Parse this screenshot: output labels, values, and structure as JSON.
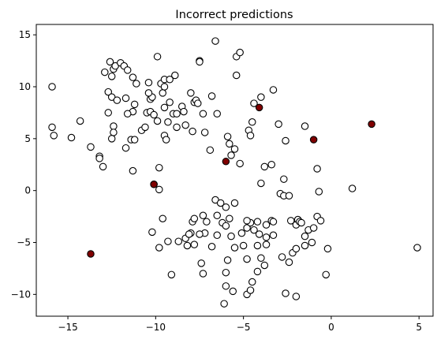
{
  "chart_data": {
    "type": "scatter",
    "title": "Incorrect predictions",
    "xlabel": "",
    "ylabel": "",
    "xlim": [
      -16.8,
      5.8
    ],
    "ylim": [
      -12.1,
      16.0
    ],
    "xticks": [
      -15,
      -10,
      -5,
      0,
      5
    ],
    "yticks": [
      -10,
      -5,
      0,
      5,
      10,
      15
    ],
    "xtick_labels": [
      "−15",
      "−10",
      "−5",
      "0",
      "5"
    ],
    "ytick_labels": [
      "−10",
      "−5",
      "0",
      "5",
      "10",
      "15"
    ],
    "grid": false,
    "series": [
      {
        "marker_fill": "#ffffff",
        "edge_color": "#000000",
        "points": [
          [
            -15.9,
            10.0
          ],
          [
            -15.9,
            6.1
          ],
          [
            -15.8,
            5.3
          ],
          [
            -14.3,
            6.7
          ],
          [
            -14.8,
            5.1
          ],
          [
            -13.7,
            4.2
          ],
          [
            -13.2,
            3.3
          ],
          [
            -13.2,
            3.1
          ],
          [
            -13.0,
            2.3
          ],
          [
            -12.6,
            12.4
          ],
          [
            -12.5,
            11.0
          ],
          [
            -12.4,
            11.7
          ],
          [
            -12.3,
            12.0
          ],
          [
            -12.0,
            12.3
          ],
          [
            -11.8,
            12.0
          ],
          [
            -11.6,
            11.6
          ],
          [
            -11.3,
            10.9
          ],
          [
            -11.1,
            10.3
          ],
          [
            -12.9,
            11.4
          ],
          [
            -12.7,
            9.5
          ],
          [
            -12.5,
            9.0
          ],
          [
            -12.2,
            8.7
          ],
          [
            -11.7,
            8.9
          ],
          [
            -11.2,
            8.3
          ],
          [
            -12.7,
            7.5
          ],
          [
            -12.4,
            6.2
          ],
          [
            -12.4,
            5.6
          ],
          [
            -12.5,
            5.0
          ],
          [
            -11.7,
            4.1
          ],
          [
            -11.4,
            4.9
          ],
          [
            -11.2,
            4.9
          ],
          [
            -11.3,
            7.6
          ],
          [
            -11.6,
            7.4
          ],
          [
            -10.8,
            5.8
          ],
          [
            -10.5,
            7.5
          ],
          [
            -10.6,
            6.1
          ],
          [
            -10.3,
            7.6
          ],
          [
            -10.3,
            8.8
          ],
          [
            -10.2,
            9.0
          ],
          [
            -10.1,
            7.3
          ],
          [
            -9.9,
            6.7
          ],
          [
            -9.7,
            10.3
          ],
          [
            -10.4,
            10.4
          ],
          [
            -10.4,
            9.4
          ],
          [
            -9.6,
            9.4
          ],
          [
            -9.5,
            10.0
          ],
          [
            -9.5,
            8.0
          ],
          [
            -9.3,
            6.6
          ],
          [
            -9.2,
            8.5
          ],
          [
            -9.0,
            7.4
          ],
          [
            -8.8,
            6.1
          ],
          [
            -8.8,
            7.4
          ],
          [
            -8.5,
            8.1
          ],
          [
            -8.4,
            7.6
          ],
          [
            -8.3,
            6.3
          ],
          [
            -8.0,
            9.4
          ],
          [
            -7.8,
            8.5
          ],
          [
            -8.9,
            11.1
          ],
          [
            -9.9,
            12.9
          ],
          [
            -9.5,
            10.7
          ],
          [
            -9.2,
            10.7
          ],
          [
            -7.5,
            12.5
          ],
          [
            -7.5,
            12.4
          ],
          [
            -6.6,
            14.4
          ],
          [
            -7.3,
            7.4
          ],
          [
            -7.2,
            5.6
          ],
          [
            -7.9,
            5.7
          ],
          [
            -7.7,
            8.7
          ],
          [
            -7.6,
            8.4
          ],
          [
            -6.8,
            9.1
          ],
          [
            -6.5,
            7.4
          ],
          [
            -6.9,
            3.9
          ],
          [
            -9.5,
            5.3
          ],
          [
            -9.4,
            4.9
          ],
          [
            -9.8,
            2.2
          ],
          [
            -11.3,
            1.9
          ],
          [
            -9.8,
            0.1
          ],
          [
            -10.1,
            0.6
          ],
          [
            -5.4,
            12.9
          ],
          [
            -5.2,
            13.3
          ],
          [
            -5.4,
            11.1
          ],
          [
            -4.4,
            8.4
          ],
          [
            -4.0,
            9.0
          ],
          [
            -3.3,
            9.7
          ],
          [
            -4.5,
            6.6
          ],
          [
            -4.7,
            5.8
          ],
          [
            -4.6,
            5.3
          ],
          [
            -5.8,
            4.5
          ],
          [
            -5.9,
            5.2
          ],
          [
            -5.5,
            4.0
          ],
          [
            -5.7,
            3.4
          ],
          [
            -5.2,
            2.6
          ],
          [
            -3.8,
            2.3
          ],
          [
            -3.4,
            2.5
          ],
          [
            -3.0,
            6.4
          ],
          [
            -2.6,
            4.8
          ],
          [
            -1.5,
            6.2
          ],
          [
            -4.0,
            0.7
          ],
          [
            -2.7,
            1.1
          ],
          [
            -2.9,
            -0.3
          ],
          [
            -2.7,
            -0.5
          ],
          [
            -3.4,
            -2.9
          ],
          [
            -3.7,
            -3.3
          ],
          [
            -3.3,
            -3.0
          ],
          [
            -2.4,
            -0.5
          ],
          [
            -2.3,
            -2.9
          ],
          [
            -2.0,
            -3.3
          ],
          [
            -1.9,
            -2.8
          ],
          [
            -1.8,
            -3.0
          ],
          [
            -1.3,
            -3.8
          ],
          [
            -0.8,
            -2.5
          ],
          [
            -0.6,
            -2.9
          ],
          [
            -0.7,
            -0.1
          ],
          [
            -0.8,
            2.1
          ],
          [
            1.2,
            0.2
          ],
          [
            4.9,
            -5.5
          ],
          [
            -0.2,
            -5.6
          ],
          [
            -0.3,
            -8.1
          ],
          [
            -6.6,
            -0.9
          ],
          [
            -6.3,
            -1.2
          ],
          [
            -6.0,
            -1.6
          ],
          [
            -5.5,
            -1.2
          ],
          [
            -6.5,
            -2.4
          ],
          [
            -5.8,
            -2.7
          ],
          [
            -6.2,
            -3.1
          ],
          [
            -7.3,
            -2.4
          ],
          [
            -7.1,
            -3.0
          ],
          [
            -6.0,
            -3.4
          ],
          [
            -6.5,
            -4.3
          ],
          [
            -7.2,
            -4.1
          ],
          [
            -8.0,
            -4.1
          ],
          [
            -8.3,
            -4.6
          ],
          [
            -8.7,
            -4.9
          ],
          [
            -8.2,
            -5.3
          ],
          [
            -9.3,
            -4.9
          ],
          [
            -9.8,
            -5.5
          ],
          [
            -10.2,
            -4.0
          ],
          [
            -9.6,
            -2.7
          ],
          [
            -7.9,
            -3.0
          ],
          [
            -7.8,
            -2.7
          ],
          [
            -7.5,
            -4.2
          ],
          [
            -7.8,
            -5.2
          ],
          [
            -6.8,
            -5.4
          ],
          [
            -5.5,
            -5.5
          ],
          [
            -5.7,
            -4.4
          ],
          [
            -5.1,
            -4.1
          ],
          [
            -4.8,
            -3.6
          ],
          [
            -4.6,
            -3.1
          ],
          [
            -4.2,
            -3.0
          ],
          [
            -4.8,
            -2.9
          ],
          [
            -4.4,
            -3.8
          ],
          [
            -4.1,
            -4.2
          ],
          [
            -3.7,
            -4.5
          ],
          [
            -3.3,
            -4.3
          ],
          [
            -3.7,
            -5.2
          ],
          [
            -4.2,
            -5.3
          ],
          [
            -4.0,
            -6.5
          ],
          [
            -5.0,
            -5.3
          ],
          [
            -4.8,
            -6.6
          ],
          [
            -5.9,
            -6.7
          ],
          [
            -6.0,
            -7.9
          ],
          [
            -6.0,
            -9.2
          ],
          [
            -5.6,
            -9.7
          ],
          [
            -6.1,
            -10.9
          ],
          [
            -4.8,
            -10.0
          ],
          [
            -4.6,
            -9.6
          ],
          [
            -4.5,
            -8.8
          ],
          [
            -4.2,
            -7.8
          ],
          [
            -3.8,
            -7.2
          ],
          [
            -2.8,
            -6.4
          ],
          [
            -2.4,
            -6.9
          ],
          [
            -2.2,
            -6.0
          ],
          [
            -2.0,
            -5.6
          ],
          [
            -1.5,
            -5.3
          ],
          [
            -1.1,
            -5.0
          ],
          [
            -1.5,
            -4.4
          ],
          [
            -1.0,
            -3.6
          ],
          [
            -1.7,
            -3.1
          ],
          [
            -2.6,
            -9.9
          ],
          [
            -2.0,
            -10.2
          ],
          [
            -7.4,
            -7.0
          ],
          [
            -7.3,
            -8.0
          ],
          [
            -9.1,
            -8.1
          ],
          [
            -8.1,
            -4.2
          ]
        ]
      },
      {
        "marker_fill": "#800000",
        "edge_color": "#000000",
        "points": [
          [
            -13.7,
            -6.1
          ],
          [
            -10.1,
            0.6
          ],
          [
            -6.0,
            2.8
          ],
          [
            -4.1,
            8.0
          ],
          [
            -1.0,
            4.9
          ],
          [
            2.3,
            6.4
          ]
        ]
      }
    ]
  }
}
